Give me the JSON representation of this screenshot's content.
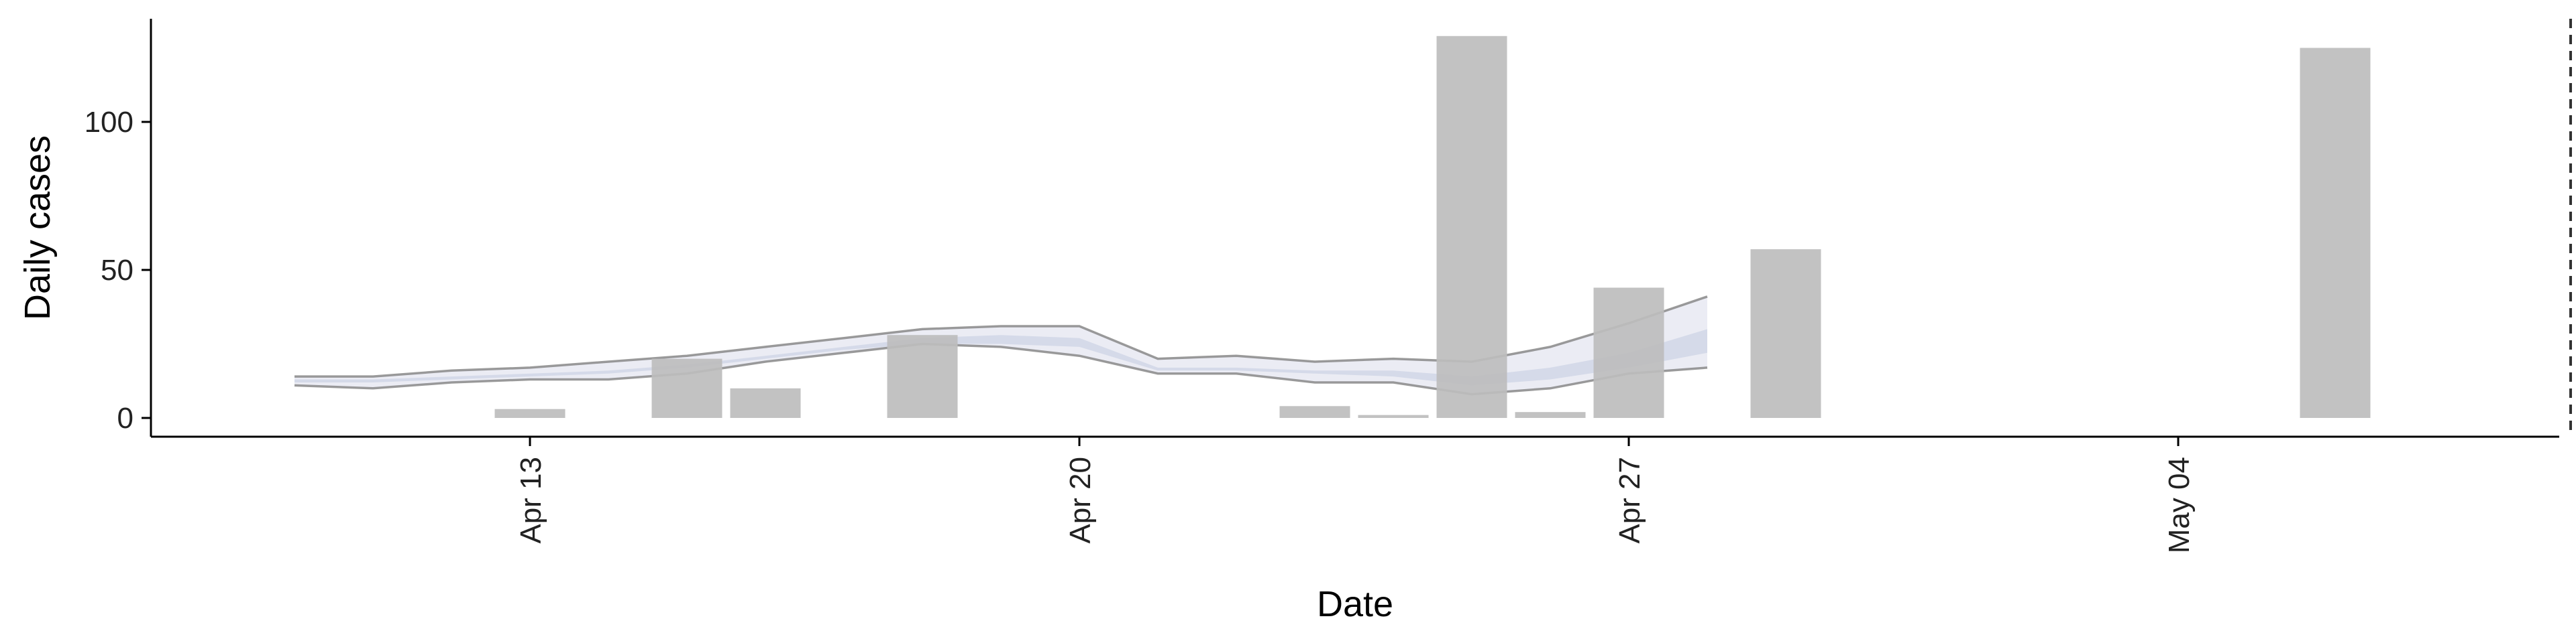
{
  "chart_data": {
    "type": "bar",
    "title": "",
    "xlabel": "Date",
    "ylabel": "Daily cases",
    "x_ticks": [
      {
        "date": "2020-04-13",
        "label": "Apr 13"
      },
      {
        "date": "2020-04-20",
        "label": "Apr 20"
      },
      {
        "date": "2020-04-27",
        "label": "Apr 27"
      },
      {
        "date": "2020-05-04",
        "label": "May 04"
      }
    ],
    "y_ticks": [
      0,
      50,
      100
    ],
    "xlim": [
      "2020-04-07",
      "2020-05-12"
    ],
    "ylim": [
      -6,
      135
    ],
    "grid": false,
    "bars": {
      "color": "#bdbdbd",
      "data": [
        {
          "date": "2020-04-13",
          "value": 3
        },
        {
          "date": "2020-04-15",
          "value": 20
        },
        {
          "date": "2020-04-16",
          "value": 10
        },
        {
          "date": "2020-04-18",
          "value": 28
        },
        {
          "date": "2020-04-23",
          "value": 4
        },
        {
          "date": "2020-04-24",
          "value": 1
        },
        {
          "date": "2020-04-25",
          "value": 129
        },
        {
          "date": "2020-04-26",
          "value": 2
        },
        {
          "date": "2020-04-27",
          "value": 44
        },
        {
          "date": "2020-04-29",
          "value": 57
        },
        {
          "date": "2020-05-06",
          "value": 125
        }
      ]
    },
    "estimate_bands": {
      "dates": [
        "2020-04-10",
        "2020-04-11",
        "2020-04-12",
        "2020-04-13",
        "2020-04-14",
        "2020-04-15",
        "2020-04-16",
        "2020-04-17",
        "2020-04-18",
        "2020-04-19",
        "2020-04-20",
        "2020-04-21",
        "2020-04-22",
        "2020-04-23",
        "2020-04-24",
        "2020-04-25",
        "2020-04-26",
        "2020-04-27",
        "2020-04-28"
      ],
      "outer_upper": [
        14,
        14,
        16,
        17,
        19,
        21,
        24,
        27,
        30,
        31,
        31,
        20,
        21,
        19,
        20,
        19,
        24,
        32,
        41
      ],
      "outer_lower": [
        11,
        10,
        12,
        13,
        13,
        15,
        19,
        22,
        25,
        24,
        21,
        15,
        15,
        12,
        12,
        8,
        10,
        15,
        17
      ],
      "inner_upper": [
        13,
        13,
        14,
        15,
        16,
        18,
        21,
        24,
        27,
        28,
        27,
        17,
        17,
        16,
        16,
        14,
        17,
        22,
        30
      ],
      "inner_lower": [
        12,
        12,
        13,
        14,
        15,
        17,
        20,
        23,
        25,
        25,
        24,
        16,
        16,
        15,
        14,
        11,
        13,
        17,
        22
      ],
      "outer_color": "#e8e9f2",
      "inner_color": "#d3d8e8",
      "edge_color": "#888888"
    },
    "vline": {
      "date": "2020-05-09",
      "style": "dashed",
      "color": "#333333"
    }
  }
}
